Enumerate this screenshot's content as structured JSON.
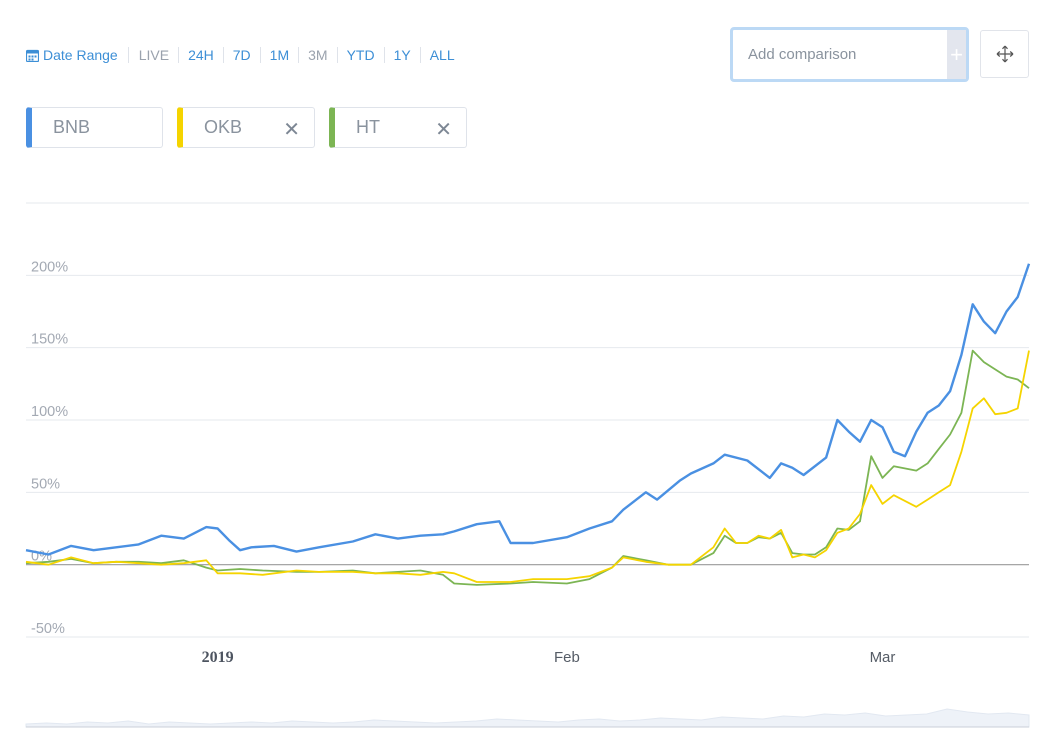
{
  "controls": {
    "date_range_label": "Date Range",
    "range_options": [
      {
        "label": "LIVE",
        "active": false
      },
      {
        "label": "24H",
        "active": true
      },
      {
        "label": "7D",
        "active": true
      },
      {
        "label": "1M",
        "active": true
      },
      {
        "label": "3M",
        "active": false
      },
      {
        "label": "YTD",
        "active": true
      },
      {
        "label": "1Y",
        "active": true
      },
      {
        "label": "ALL",
        "active": true
      }
    ],
    "compare_placeholder": "Add comparison",
    "add_label": "+",
    "move_icon": "move-arrows-icon",
    "calendar_icon": "calendar-icon"
  },
  "chips": [
    {
      "label": "BNB",
      "color": "#4a90e2",
      "removable": false
    },
    {
      "label": "OKB",
      "color": "#f5d400",
      "removable": true
    },
    {
      "label": "HT",
      "color": "#7cb554",
      "removable": true
    }
  ],
  "chip_remove_glyph": "✕",
  "chart_data": {
    "type": "line",
    "x_ticks": [
      {
        "label": "2019",
        "date": "2019-01-01",
        "bold": true
      },
      {
        "label": "Feb",
        "date": "2019-02-01",
        "bold": false
      },
      {
        "label": "Mar",
        "date": "2019-03-01",
        "bold": false
      }
    ],
    "xlim": [
      "2018-12-15",
      "2019-03-14"
    ],
    "y_ticks": [
      {
        "label": "-50%",
        "value": -50
      },
      {
        "label": "0%",
        "value": 0
      },
      {
        "label": "50%",
        "value": 50
      },
      {
        "label": "100%",
        "value": 100
      },
      {
        "label": "150%",
        "value": 150
      },
      {
        "label": "200%",
        "value": 200
      }
    ],
    "ylim": [
      -50,
      250
    ],
    "grid": true,
    "series": [
      {
        "name": "BNB",
        "color": "#4a90e2",
        "points": [
          [
            "2018-12-15",
            10
          ],
          [
            "2018-12-17",
            7
          ],
          [
            "2018-12-19",
            13
          ],
          [
            "2018-12-21",
            10
          ],
          [
            "2018-12-23",
            12
          ],
          [
            "2018-12-25",
            14
          ],
          [
            "2018-12-27",
            20
          ],
          [
            "2018-12-29",
            18
          ],
          [
            "2018-12-31",
            26
          ],
          [
            "2019-01-01",
            25
          ],
          [
            "2019-01-02",
            17
          ],
          [
            "2019-01-03",
            10
          ],
          [
            "2019-01-04",
            12
          ],
          [
            "2019-01-06",
            13
          ],
          [
            "2019-01-08",
            9
          ],
          [
            "2019-01-10",
            12
          ],
          [
            "2019-01-13",
            16
          ],
          [
            "2019-01-15",
            21
          ],
          [
            "2019-01-17",
            18
          ],
          [
            "2019-01-19",
            20
          ],
          [
            "2019-01-21",
            21
          ],
          [
            "2019-01-22",
            23
          ],
          [
            "2019-01-24",
            28
          ],
          [
            "2019-01-26",
            30
          ],
          [
            "2019-01-27",
            15
          ],
          [
            "2019-01-29",
            15
          ],
          [
            "2019-02-01",
            19
          ],
          [
            "2019-02-03",
            25
          ],
          [
            "2019-02-05",
            30
          ],
          [
            "2019-02-06",
            38
          ],
          [
            "2019-02-08",
            50
          ],
          [
            "2019-02-09",
            45
          ],
          [
            "2019-02-11",
            58
          ],
          [
            "2019-02-12",
            63
          ],
          [
            "2019-02-14",
            70
          ],
          [
            "2019-02-15",
            76
          ],
          [
            "2019-02-17",
            72
          ],
          [
            "2019-02-19",
            60
          ],
          [
            "2019-02-20",
            70
          ],
          [
            "2019-02-21",
            67
          ],
          [
            "2019-02-22",
            62
          ],
          [
            "2019-02-24",
            74
          ],
          [
            "2019-02-25",
            100
          ],
          [
            "2019-02-26",
            92
          ],
          [
            "2019-02-27",
            85
          ],
          [
            "2019-02-28",
            100
          ],
          [
            "2019-03-01",
            95
          ],
          [
            "2019-03-02",
            78
          ],
          [
            "2019-03-03",
            75
          ],
          [
            "2019-03-04",
            92
          ],
          [
            "2019-03-05",
            105
          ],
          [
            "2019-03-06",
            110
          ],
          [
            "2019-03-07",
            120
          ],
          [
            "2019-03-08",
            145
          ],
          [
            "2019-03-09",
            180
          ],
          [
            "2019-03-10",
            168
          ],
          [
            "2019-03-11",
            160
          ],
          [
            "2019-03-12",
            175
          ],
          [
            "2019-03-13",
            185
          ],
          [
            "2019-03-14",
            208
          ]
        ]
      },
      {
        "name": "OKB",
        "color": "#f5d400",
        "points": [
          [
            "2018-12-15",
            2
          ],
          [
            "2018-12-17",
            0
          ],
          [
            "2018-12-19",
            5
          ],
          [
            "2018-12-21",
            1
          ],
          [
            "2018-12-23",
            2
          ],
          [
            "2018-12-25",
            1
          ],
          [
            "2018-12-27",
            0
          ],
          [
            "2018-12-29",
            1
          ],
          [
            "2018-12-31",
            3
          ],
          [
            "2019-01-01",
            -6
          ],
          [
            "2019-01-03",
            -6
          ],
          [
            "2019-01-05",
            -7
          ],
          [
            "2019-01-08",
            -4
          ],
          [
            "2019-01-10",
            -5
          ],
          [
            "2019-01-13",
            -5
          ],
          [
            "2019-01-15",
            -6
          ],
          [
            "2019-01-17",
            -6
          ],
          [
            "2019-01-19",
            -7
          ],
          [
            "2019-01-21",
            -5
          ],
          [
            "2019-01-22",
            -6
          ],
          [
            "2019-01-24",
            -12
          ],
          [
            "2019-01-27",
            -12
          ],
          [
            "2019-01-29",
            -10
          ],
          [
            "2019-02-01",
            -10
          ],
          [
            "2019-02-03",
            -8
          ],
          [
            "2019-02-05",
            -2
          ],
          [
            "2019-02-06",
            5
          ],
          [
            "2019-02-08",
            2
          ],
          [
            "2019-02-10",
            0
          ],
          [
            "2019-02-12",
            0
          ],
          [
            "2019-02-14",
            12
          ],
          [
            "2019-02-15",
            25
          ],
          [
            "2019-02-16",
            15
          ],
          [
            "2019-02-17",
            15
          ],
          [
            "2019-02-18",
            20
          ],
          [
            "2019-02-19",
            18
          ],
          [
            "2019-02-20",
            24
          ],
          [
            "2019-02-21",
            5
          ],
          [
            "2019-02-22",
            7
          ],
          [
            "2019-02-23",
            5
          ],
          [
            "2019-02-24",
            10
          ],
          [
            "2019-02-25",
            22
          ],
          [
            "2019-02-26",
            25
          ],
          [
            "2019-02-27",
            35
          ],
          [
            "2019-02-28",
            55
          ],
          [
            "2019-03-01",
            42
          ],
          [
            "2019-03-02",
            48
          ],
          [
            "2019-03-04",
            40
          ],
          [
            "2019-03-05",
            45
          ],
          [
            "2019-03-06",
            50
          ],
          [
            "2019-03-07",
            55
          ],
          [
            "2019-03-08",
            78
          ],
          [
            "2019-03-09",
            108
          ],
          [
            "2019-03-10",
            115
          ],
          [
            "2019-03-11",
            104
          ],
          [
            "2019-03-12",
            105
          ],
          [
            "2019-03-13",
            108
          ],
          [
            "2019-03-14",
            148
          ]
        ]
      },
      {
        "name": "HT",
        "color": "#7cb554",
        "points": [
          [
            "2018-12-15",
            1
          ],
          [
            "2018-12-17",
            2
          ],
          [
            "2018-12-19",
            4
          ],
          [
            "2018-12-21",
            1
          ],
          [
            "2018-12-23",
            2
          ],
          [
            "2018-12-25",
            2
          ],
          [
            "2018-12-27",
            1
          ],
          [
            "2018-12-29",
            3
          ],
          [
            "2018-12-31",
            -2
          ],
          [
            "2019-01-01",
            -4
          ],
          [
            "2019-01-03",
            -3
          ],
          [
            "2019-01-05",
            -4
          ],
          [
            "2019-01-08",
            -5
          ],
          [
            "2019-01-10",
            -5
          ],
          [
            "2019-01-13",
            -4
          ],
          [
            "2019-01-15",
            -6
          ],
          [
            "2019-01-17",
            -5
          ],
          [
            "2019-01-19",
            -4
          ],
          [
            "2019-01-21",
            -7
          ],
          [
            "2019-01-22",
            -13
          ],
          [
            "2019-01-24",
            -14
          ],
          [
            "2019-01-27",
            -13
          ],
          [
            "2019-01-29",
            -12
          ],
          [
            "2019-02-01",
            -13
          ],
          [
            "2019-02-03",
            -10
          ],
          [
            "2019-02-05",
            -2
          ],
          [
            "2019-02-06",
            6
          ],
          [
            "2019-02-08",
            3
          ],
          [
            "2019-02-10",
            0
          ],
          [
            "2019-02-12",
            0
          ],
          [
            "2019-02-14",
            8
          ],
          [
            "2019-02-15",
            20
          ],
          [
            "2019-02-16",
            15
          ],
          [
            "2019-02-17",
            15
          ],
          [
            "2019-02-18",
            19
          ],
          [
            "2019-02-19",
            18
          ],
          [
            "2019-02-20",
            22
          ],
          [
            "2019-02-21",
            8
          ],
          [
            "2019-02-22",
            7
          ],
          [
            "2019-02-23",
            7
          ],
          [
            "2019-02-24",
            12
          ],
          [
            "2019-02-25",
            25
          ],
          [
            "2019-02-26",
            24
          ],
          [
            "2019-02-27",
            30
          ],
          [
            "2019-02-28",
            75
          ],
          [
            "2019-03-01",
            60
          ],
          [
            "2019-03-02",
            68
          ],
          [
            "2019-03-04",
            65
          ],
          [
            "2019-03-05",
            70
          ],
          [
            "2019-03-06",
            80
          ],
          [
            "2019-03-07",
            90
          ],
          [
            "2019-03-08",
            105
          ],
          [
            "2019-03-09",
            148
          ],
          [
            "2019-03-10",
            140
          ],
          [
            "2019-03-11",
            135
          ],
          [
            "2019-03-12",
            130
          ],
          [
            "2019-03-13",
            128
          ],
          [
            "2019-03-14",
            122
          ]
        ]
      }
    ],
    "navigator_values": [
      3,
      4,
      3,
      5,
      4,
      6,
      3,
      5,
      4,
      3,
      4,
      5,
      4,
      6,
      5,
      4,
      5,
      7,
      6,
      5,
      4,
      5,
      6,
      8,
      7,
      6,
      5,
      7,
      8,
      6,
      7,
      9,
      8,
      7,
      10,
      9,
      8,
      11,
      10,
      13,
      12,
      14,
      11,
      12,
      13,
      18,
      15,
      13,
      14,
      12
    ]
  }
}
